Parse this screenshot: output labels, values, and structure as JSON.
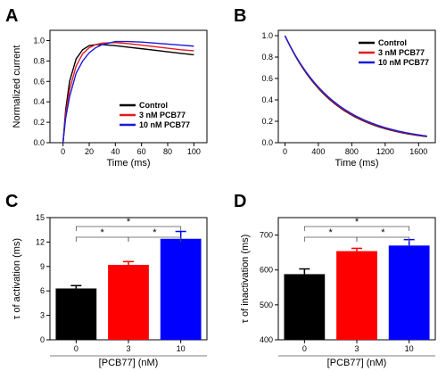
{
  "chart_data": [
    {
      "panel": "A",
      "type": "line",
      "xlabel": "Time (ms)",
      "ylabel": "Normalized current",
      "xlim": [
        -10,
        110
      ],
      "ylim": [
        0,
        1.1
      ],
      "xticks": [
        0,
        20,
        40,
        60,
        80,
        100
      ],
      "yticks": [
        0.0,
        0.2,
        0.4,
        0.6,
        0.8,
        1.0
      ],
      "ytick_labels": [
        "0.0",
        "0.2",
        "0.4",
        "0.6",
        "0.8",
        "1.0"
      ],
      "legend_position": "bottom-right",
      "series": [
        {
          "name": "Control",
          "color": "#000000",
          "x": [
            0,
            2,
            5,
            10,
            15,
            20,
            25,
            30,
            40,
            50,
            60,
            70,
            80,
            90,
            100
          ],
          "y": [
            0,
            0.32,
            0.6,
            0.82,
            0.91,
            0.95,
            0.96,
            0.96,
            0.95,
            0.935,
            0.92,
            0.905,
            0.89,
            0.875,
            0.86
          ]
        },
        {
          "name": "3 nM PCB77",
          "color": "#e8191c",
          "x": [
            0,
            2,
            5,
            10,
            15,
            20,
            25,
            30,
            40,
            50,
            60,
            70,
            80,
            90,
            100
          ],
          "y": [
            0,
            0.28,
            0.52,
            0.75,
            0.87,
            0.93,
            0.96,
            0.975,
            0.98,
            0.97,
            0.955,
            0.94,
            0.925,
            0.91,
            0.9
          ]
        },
        {
          "name": "10 nM PCB77",
          "color": "#1a1adb",
          "x": [
            0,
            2,
            5,
            10,
            15,
            20,
            25,
            30,
            40,
            50,
            60,
            70,
            80,
            90,
            100
          ],
          "y": [
            0,
            0.24,
            0.45,
            0.68,
            0.8,
            0.88,
            0.93,
            0.96,
            0.99,
            0.99,
            0.985,
            0.975,
            0.965,
            0.955,
            0.945
          ]
        }
      ]
    },
    {
      "panel": "B",
      "type": "line",
      "xlabel": "Time (ms)",
      "ylabel": "",
      "xlim": [
        -80,
        1800
      ],
      "ylim": [
        0,
        1.05
      ],
      "xticks": [
        0,
        400,
        800,
        1200,
        1600
      ],
      "yticks": [
        0.0,
        0.2,
        0.4,
        0.6,
        0.8,
        1.0
      ],
      "ytick_labels": [
        "0.0",
        "0.2",
        "0.4",
        "0.6",
        "0.8",
        "1.0"
      ],
      "legend_position": "top-right",
      "series": [
        {
          "name": "Control",
          "color": "#000000",
          "tau": 590
        },
        {
          "name": "3 nM PCB77",
          "color": "#e8191c",
          "tau": 600
        },
        {
          "name": "10 nM PCB77",
          "color": "#1a1adb",
          "tau": 612
        }
      ],
      "x_end": 1700
    },
    {
      "panel": "C",
      "type": "bar",
      "ylabel": "τ of activation (ms)",
      "xlabel": "[PCB77]  (nM)",
      "categories": [
        "0",
        "3",
        "10"
      ],
      "values": [
        6.3,
        9.2,
        12.4
      ],
      "errors": [
        0.35,
        0.4,
        0.9
      ],
      "colors": [
        "#000000",
        "#ff0000",
        "#0000ff"
      ],
      "ylim": [
        0,
        15
      ],
      "yticks": [
        0,
        3,
        6,
        9,
        12,
        15
      ],
      "ytick_labels": [
        "0",
        "3",
        "6",
        "9",
        "12",
        "15"
      ],
      "significance": [
        {
          "from": 0,
          "to": 1,
          "label": "*"
        },
        {
          "from": 1,
          "to": 2,
          "label": "*"
        },
        {
          "from": 0,
          "to": 2,
          "label": "*"
        }
      ]
    },
    {
      "panel": "D",
      "type": "bar",
      "ylabel": "τ of inactivation (ms)",
      "xlabel": "[PCB77]  (nM)",
      "categories": [
        "0",
        "3",
        "10"
      ],
      "values": [
        588,
        654,
        670
      ],
      "errors": [
        15,
        8,
        17
      ],
      "colors": [
        "#000000",
        "#ff0000",
        "#0000ff"
      ],
      "ylim": [
        400,
        750
      ],
      "yticks": [
        400,
        500,
        600,
        700
      ],
      "ytick_labels": [
        "400",
        "500",
        "600",
        "700"
      ],
      "significance": [
        {
          "from": 0,
          "to": 1,
          "label": "*"
        },
        {
          "from": 1,
          "to": 2,
          "label": "*"
        },
        {
          "from": 0,
          "to": 2,
          "label": "*"
        }
      ]
    }
  ]
}
